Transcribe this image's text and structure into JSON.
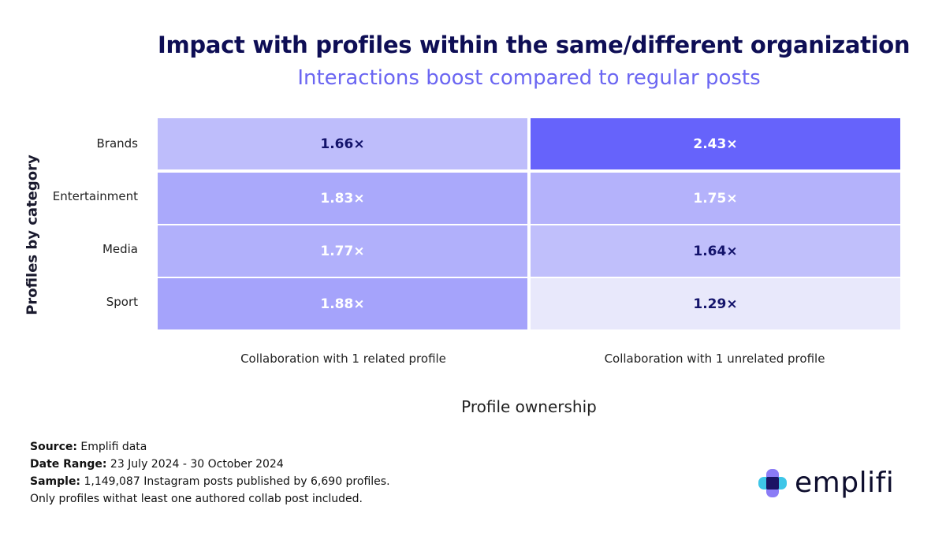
{
  "chart_data": {
    "type": "heatmap",
    "title": "Impact with profiles within the same/different organization",
    "subtitle": "Interactions boost compared to regular posts",
    "ylabel": "Profiles by category",
    "xlabel": "Profile ownership",
    "rows": [
      "Brands",
      "Entertainment",
      "Media",
      "Sport"
    ],
    "columns": [
      "Collaboration with 1 related profile",
      "Collaboration with 1 unrelated profile"
    ],
    "values": [
      [
        1.66,
        2.43
      ],
      [
        1.83,
        1.75
      ],
      [
        1.77,
        1.64
      ],
      [
        1.88,
        1.29
      ]
    ],
    "labels": [
      [
        "1.66×",
        "2.43×"
      ],
      [
        "1.83×",
        "1.75×"
      ],
      [
        "1.77×",
        "1.64×"
      ],
      [
        "1.88×",
        "1.29×"
      ]
    ],
    "color_range": [
      "#e8e8fb",
      "#6663fb"
    ]
  },
  "footer": {
    "source_label": "Source:",
    "source_value": "Emplifi data",
    "date_label": "Date Range:",
    "date_value": "23 July 2024 - 30 October 2024",
    "sample_label": "Sample:",
    "sample_value": "1,149,087 Instagram posts published by 6,690 profiles.",
    "note": "Only profiles withat least one authored collab post included."
  },
  "logo": {
    "text": "emplifi",
    "icon": "emplifi-logo-icon"
  }
}
